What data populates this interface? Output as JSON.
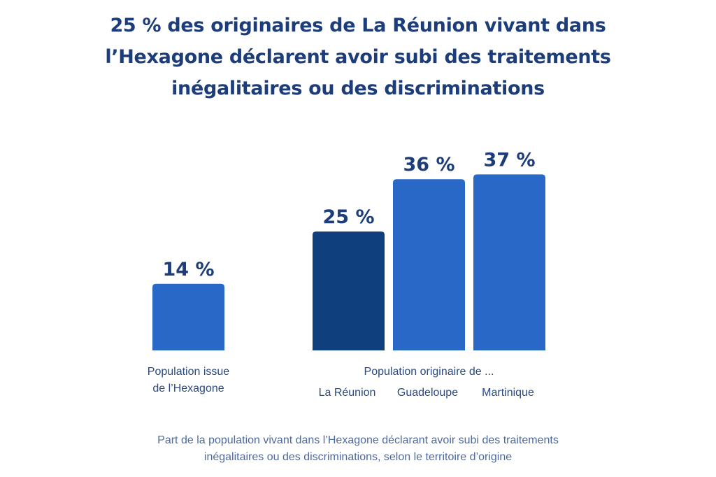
{
  "title_lines": [
    "25 % des originaires de La Réunion vivant dans",
    "l’Hexagone déclarent avoir subi des traitements",
    "inégalitaires ou des discriminations"
  ],
  "colors": {
    "bar": "#2a68c8",
    "bar_highlight": "#0f3f7d",
    "title": "#1d3d7a",
    "caption": "#4d6aa0"
  },
  "chart_data": {
    "type": "bar",
    "categories": [
      "Population issue de l’Hexagone",
      "La Réunion",
      "Guadeloupe",
      "Martinique"
    ],
    "values": [
      14,
      25,
      36,
      37
    ],
    "value_labels": [
      "14 %",
      "25 %",
      "36 %",
      "37 %"
    ],
    "highlight": "La Réunion",
    "ylim": [
      0,
      40
    ],
    "groups": [
      {
        "label_lines": [
          "Population issue",
          "de l’Hexagone"
        ],
        "categories": [
          "Population issue de l’Hexagone"
        ]
      },
      {
        "label_lines": [
          "Population originaire de ..."
        ],
        "categories": [
          "La Réunion",
          "Guadeloupe",
          "Martinique"
        ]
      }
    ],
    "caption_lines": [
      "Part de la population vivant dans l’Hexagone déclarant avoir subi des traitements",
      "inégalitaires ou des discriminations, selon le territoire d’origine"
    ]
  }
}
